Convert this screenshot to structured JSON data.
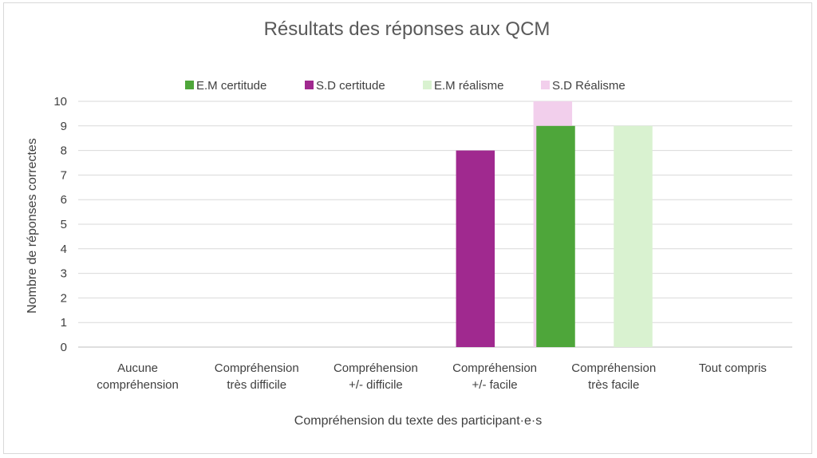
{
  "chart_data": {
    "type": "bar",
    "title": "Résultats des réponses aux QCM",
    "xlabel": "Compréhension du texte des participant·e·s",
    "ylabel": "Nombre de réponses correctes",
    "ylim": [
      0,
      10
    ],
    "yticks": [
      0,
      1,
      2,
      3,
      4,
      5,
      6,
      7,
      8,
      9,
      10
    ],
    "grid": true,
    "legend_position": "top",
    "categories": [
      [
        "Aucune",
        "compréhension"
      ],
      [
        "Compréhension",
        "très difficile"
      ],
      [
        "Compréhension",
        "+/- difficile"
      ],
      [
        "Compréhension",
        "+/- facile"
      ],
      [
        "Compréhension",
        "très facile"
      ],
      [
        "Tout compris"
      ]
    ],
    "series": [
      {
        "name": "E.M certitude",
        "color": "#4ea63a",
        "values": [
          0,
          0,
          0,
          0,
          9,
          0
        ]
      },
      {
        "name": "S.D certitude",
        "color": "#a0298f",
        "values": [
          0,
          0,
          0,
          8,
          0,
          0
        ]
      },
      {
        "name": "E.M réalisme",
        "color": "#d9f2d0",
        "values": [
          0,
          0,
          0,
          0,
          9,
          0
        ]
      },
      {
        "name": "S.D Réalisme",
        "color": "#f2cfec",
        "values": [
          0,
          0,
          0,
          10,
          0,
          0
        ]
      }
    ]
  }
}
